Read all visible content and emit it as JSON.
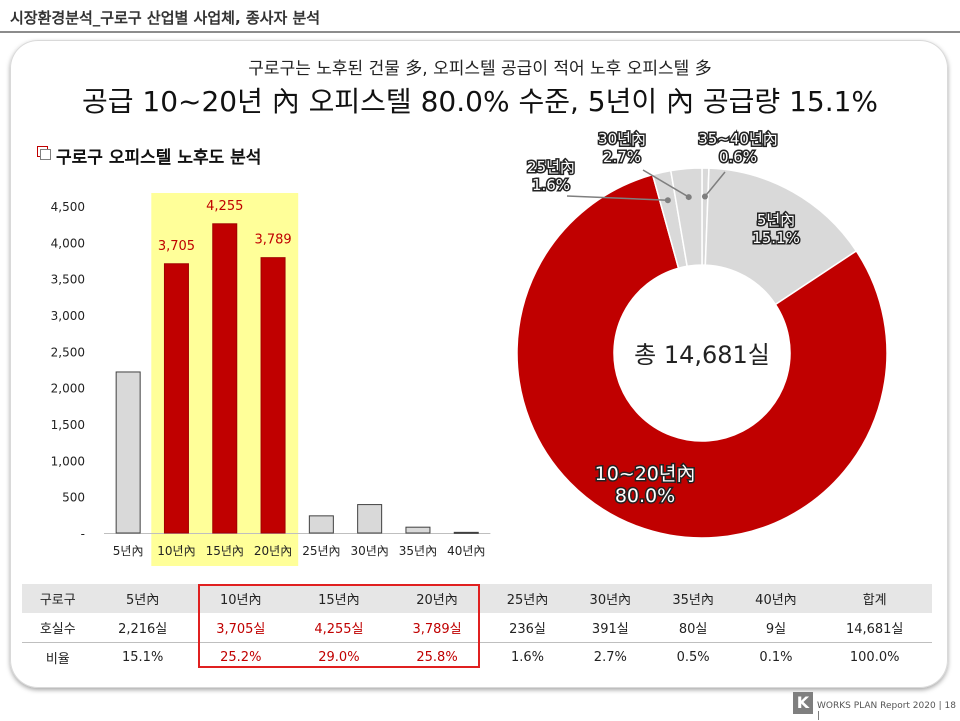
{
  "page": {
    "title": "시장환경분석_구로구 산업별 사업체, 종사자 분석",
    "subheadline": "구로구는 노후된 건물 多, 오피스텔 공급이 적어 노후 오피스텔 多",
    "headline": "공급 10~20년 內 오피스텔 80.0% 수준, 5년이 內 공급량 15.1%",
    "section_title": "구로구 오피스텔 노후도 분석"
  },
  "colors": {
    "highlight": "#c00000",
    "gray_bar": "#d9d9d9",
    "highlight_band": "#ffff99",
    "border_red": "#e02020"
  },
  "chart_data": [
    {
      "type": "bar",
      "categories": [
        "5년內",
        "10년內",
        "15년內",
        "20년內",
        "25년內",
        "30년內",
        "35년內",
        "40년內"
      ],
      "values": [
        2216,
        3705,
        4255,
        3789,
        236,
        391,
        80,
        9
      ],
      "highlighted": [
        "10년內",
        "15년內",
        "20년內"
      ],
      "data_labels": {
        "10년內": "3,705",
        "15년內": "4,255",
        "20년內": "3,789"
      },
      "ylim": [
        0,
        4500
      ],
      "yticks": [
        "-",
        "500",
        "1,000",
        "1,500",
        "2,000",
        "2,500",
        "3,000",
        "3,500",
        "4,000",
        "4,500"
      ],
      "grid": false
    },
    {
      "type": "pie",
      "donut": true,
      "center_label": "총 14,681실",
      "slices": [
        {
          "label": "5년內",
          "value": 15.1,
          "pct_text": "15.1%"
        },
        {
          "label": "10~20년內",
          "value": 80.0,
          "pct_text": "80.0%"
        },
        {
          "label": "25년內",
          "value": 1.6,
          "pct_text": "1.6%"
        },
        {
          "label": "30년內",
          "value": 2.7,
          "pct_text": "2.7%"
        },
        {
          "label": "35~40년內",
          "value": 0.6,
          "pct_text": "0.6%"
        }
      ]
    }
  ],
  "table": {
    "header": [
      "구로구",
      "5년內",
      "10년內",
      "15년內",
      "20년內",
      "25년內",
      "30년內",
      "35년內",
      "40년內",
      "합계"
    ],
    "rows": [
      [
        "호실수",
        "2,216실",
        "3,705실",
        "4,255실",
        "3,789실",
        "236실",
        "391실",
        "80실",
        "9실",
        "14,681실"
      ],
      [
        "비율",
        "15.1%",
        "25.2%",
        "29.0%",
        "25.8%",
        "1.6%",
        "2.7%",
        "0.5%",
        "0.1%",
        "100.0%"
      ]
    ]
  },
  "footer": {
    "logo_letter": "K",
    "text": "WORKS PLAN Report 2020 | 18 |"
  }
}
